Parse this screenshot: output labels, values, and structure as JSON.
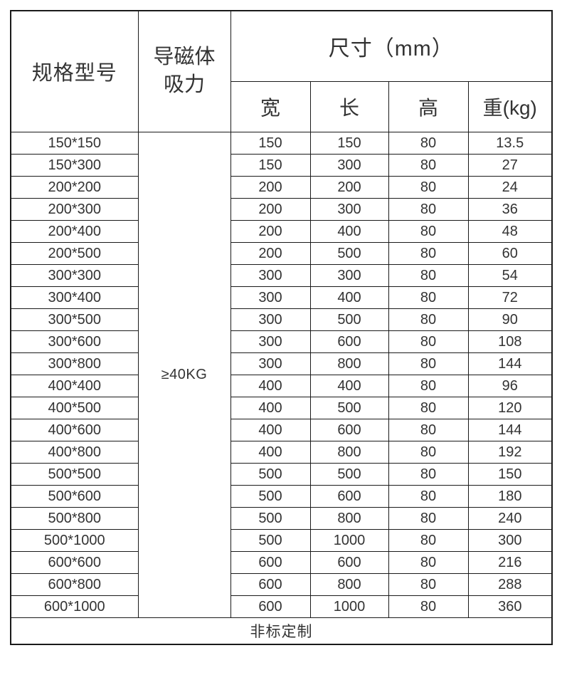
{
  "chart_data": {
    "type": "table",
    "header": {
      "model": "规格型号",
      "suction": "导磁体\n吸力",
      "dimensions_group": "尺寸（mm）",
      "sub_columns": [
        "宽",
        "长",
        "高",
        "重(kg)"
      ]
    },
    "suction_value": "≥40KG",
    "rows": [
      {
        "model": "150*150",
        "w": "150",
        "l": "150",
        "h": "80",
        "kg": "13.5"
      },
      {
        "model": "150*300",
        "w": "150",
        "l": "300",
        "h": "80",
        "kg": "27"
      },
      {
        "model": "200*200",
        "w": "200",
        "l": "200",
        "h": "80",
        "kg": "24"
      },
      {
        "model": "200*300",
        "w": "200",
        "l": "300",
        "h": "80",
        "kg": "36"
      },
      {
        "model": "200*400",
        "w": "200",
        "l": "400",
        "h": "80",
        "kg": "48"
      },
      {
        "model": "200*500",
        "w": "200",
        "l": "500",
        "h": "80",
        "kg": "60"
      },
      {
        "model": "300*300",
        "w": "300",
        "l": "300",
        "h": "80",
        "kg": "54"
      },
      {
        "model": "300*400",
        "w": "300",
        "l": "400",
        "h": "80",
        "kg": "72"
      },
      {
        "model": "300*500",
        "w": "300",
        "l": "500",
        "h": "80",
        "kg": "90"
      },
      {
        "model": "300*600",
        "w": "300",
        "l": "600",
        "h": "80",
        "kg": "108"
      },
      {
        "model": "300*800",
        "w": "300",
        "l": "800",
        "h": "80",
        "kg": "144"
      },
      {
        "model": "400*400",
        "w": "400",
        "l": "400",
        "h": "80",
        "kg": "96"
      },
      {
        "model": "400*500",
        "w": "400",
        "l": "500",
        "h": "80",
        "kg": "120"
      },
      {
        "model": "400*600",
        "w": "400",
        "l": "600",
        "h": "80",
        "kg": "144"
      },
      {
        "model": "400*800",
        "w": "400",
        "l": "800",
        "h": "80",
        "kg": "192"
      },
      {
        "model": "500*500",
        "w": "500",
        "l": "500",
        "h": "80",
        "kg": "150"
      },
      {
        "model": "500*600",
        "w": "500",
        "l": "600",
        "h": "80",
        "kg": "180"
      },
      {
        "model": "500*800",
        "w": "500",
        "l": "800",
        "h": "80",
        "kg": "240"
      },
      {
        "model": "500*1000",
        "w": "500",
        "l": "1000",
        "h": "80",
        "kg": "300"
      },
      {
        "model": "600*600",
        "w": "600",
        "l": "600",
        "h": "80",
        "kg": "216"
      },
      {
        "model": "600*800",
        "w": "600",
        "l": "800",
        "h": "80",
        "kg": "288"
      },
      {
        "model": "600*1000",
        "w": "600",
        "l": "1000",
        "h": "80",
        "kg": "360"
      }
    ],
    "footer": "非标定制",
    "colors": {
      "border": "#1a1a1a",
      "text": "#333333",
      "background": "#ffffff"
    }
  }
}
